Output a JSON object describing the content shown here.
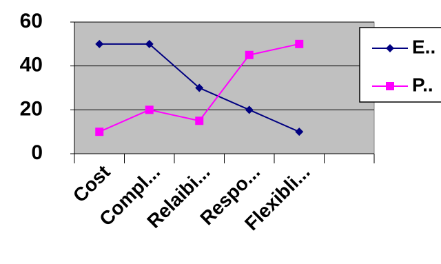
{
  "chart_data": {
    "type": "line",
    "categories": [
      "Cost",
      "Compl...",
      "Relaibi...",
      "Respo...",
      "Flexibli...",
      null
    ],
    "series": [
      {
        "name": "E..",
        "color": "#000080",
        "marker": "diamond",
        "values": [
          50,
          50,
          30,
          20,
          10,
          null
        ]
      },
      {
        "name": "P..",
        "color": "#ff00ff",
        "marker": "square",
        "values": [
          10,
          20,
          15,
          45,
          50,
          null
        ]
      }
    ],
    "ylim": [
      0,
      60
    ],
    "yticks": [
      0,
      20,
      40,
      60
    ],
    "grid": true,
    "legend": "right",
    "plot_background": "#c0c0c0"
  }
}
